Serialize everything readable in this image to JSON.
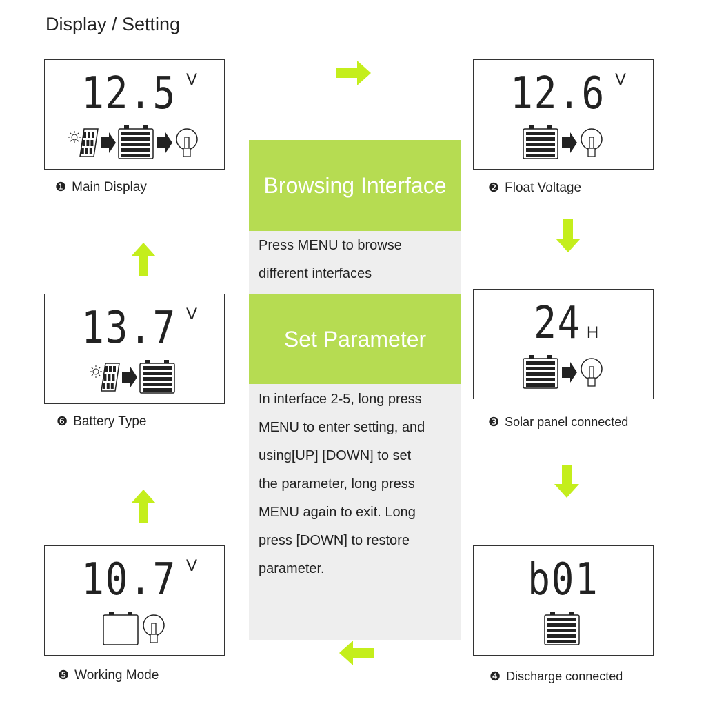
{
  "title": "Display / Setting",
  "colors": {
    "green_box": "#b6dc52",
    "arrow": "#c4ee1c",
    "center_bg": "#eeeeee",
    "lcd": "#222222"
  },
  "panels": [
    {
      "id": "p1",
      "number": "❶",
      "label": "Main Display",
      "digits": "12.5",
      "unit": "V",
      "icons": [
        "solar-panel",
        "arrow",
        "battery-full",
        "arrow",
        "bulb"
      ]
    },
    {
      "id": "p2",
      "number": "❷",
      "label": "Float Voltage",
      "digits": "12.6",
      "unit": "V",
      "icons": [
        "battery-full",
        "arrow",
        "bulb"
      ]
    },
    {
      "id": "p3",
      "number": "❸",
      "label": "Solar panel connected",
      "digits": "24",
      "unit": "H",
      "icons": [
        "battery-full",
        "arrow",
        "bulb"
      ]
    },
    {
      "id": "p4",
      "number": "❹",
      "label": "Discharge connected",
      "digits": "b01",
      "unit": "",
      "icons": [
        "battery-full"
      ]
    },
    {
      "id": "p5",
      "number": "❺",
      "label": "Working Mode",
      "digits": "10.7",
      "unit": "V",
      "icons": [
        "battery-empty",
        "bulb"
      ]
    },
    {
      "id": "p6",
      "number": "❻",
      "label": "Battery Type",
      "digits": "13.7",
      "unit": "V",
      "icons": [
        "solar-panel",
        "arrow",
        "battery-full"
      ]
    }
  ],
  "center": {
    "browse_title": "Browsing Interface",
    "browse_lines": [
      "Press MENU  to browse",
      "different  interfaces"
    ],
    "set_title": "Set Parameter",
    "set_lines": [
      "In interface 2-5, long press",
      "MENU to enter setting, and",
      "using[UP] [DOWN] to set",
      "the parameter,  long press",
      "MENU again to exit. Long",
      "press [DOWN] to restore",
      "parameter."
    ]
  },
  "flow_arrows": [
    "right",
    "down",
    "down",
    "left",
    "up",
    "up"
  ]
}
